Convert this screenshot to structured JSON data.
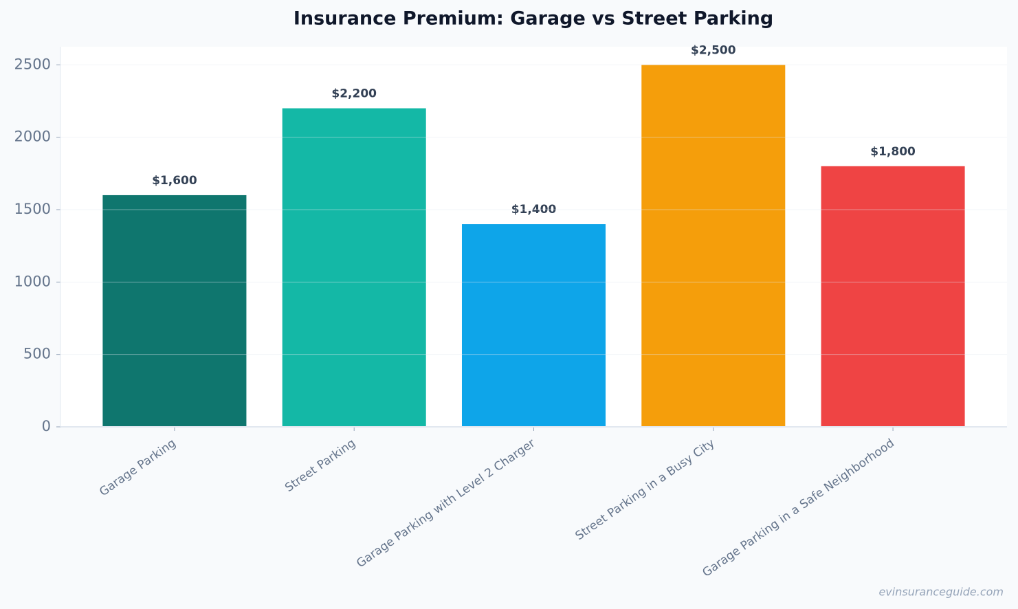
{
  "chart_data": {
    "type": "bar",
    "title": "Insurance Premium: Garage vs Street Parking",
    "categories": [
      "Garage Parking",
      "Street Parking",
      "Garage Parking with Level 2 Charger",
      "Street Parking in a Busy City",
      "Garage Parking in a Safe Neighborhood"
    ],
    "values": [
      1600,
      2200,
      1400,
      2500,
      1800
    ],
    "value_labels": [
      "$1,600",
      "$2,200",
      "$1,400",
      "$2,500",
      "$1,800"
    ],
    "colors": [
      "#0f766e",
      "#14b8a6",
      "#0ea5e9",
      "#f59e0b",
      "#ef4444"
    ],
    "ylim": [
      0,
      2625
    ],
    "yticks": [
      0,
      500,
      1000,
      1500,
      2000,
      2500
    ],
    "grid": true,
    "watermark": "evinsuranceguide.com"
  }
}
